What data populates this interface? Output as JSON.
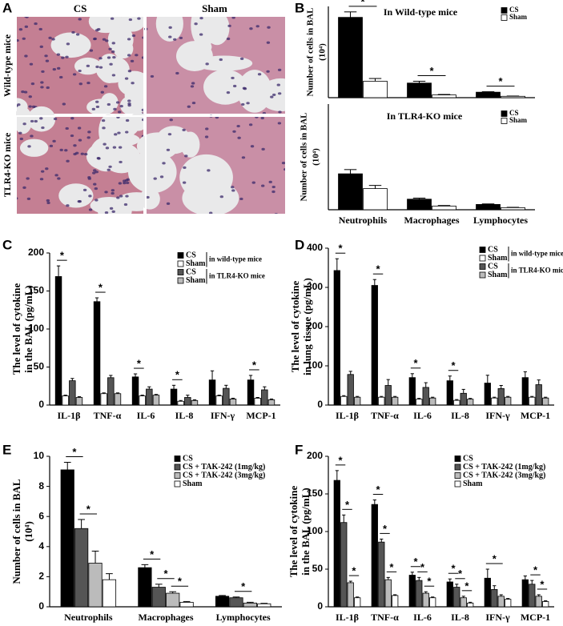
{
  "panel_labels": [
    "A",
    "B",
    "C",
    "D",
    "E",
    "F"
  ],
  "panel_a": {
    "columns": [
      "CS",
      "Sham"
    ],
    "rows": [
      "Wild-type mice",
      "TLR4-KO mice"
    ]
  },
  "chart_data": [
    {
      "type": "bar",
      "title": "In Wild-type mice",
      "ylabel": [
        "Number of cells in BAL",
        "(10⁴)"
      ],
      "ylim": [
        0,
        10
      ],
      "series": [
        {
          "name": "CS",
          "color": "#000000",
          "values": [
            8.8,
            1.6,
            0.6
          ],
          "errors": [
            0.6,
            0.2,
            0.05
          ]
        },
        {
          "name": "Sham",
          "color": "#ffffff",
          "values": [
            1.8,
            0.3,
            0.15
          ],
          "errors": [
            0.3,
            0.05,
            0.03
          ]
        }
      ],
      "annotations": [
        {
          "text": "*",
          "category": 0,
          "pair": [
            0,
            1
          ]
        },
        {
          "text": "*",
          "category": 1,
          "pair": [
            0,
            1
          ]
        },
        {
          "text": "*",
          "category": 2,
          "pair": [
            0,
            1
          ]
        }
      ]
    },
    {
      "type": "bar",
      "title": "In TLR4-KO mice",
      "ylabel": [
        "Number of cells in BAL",
        "(10⁴)"
      ],
      "ylim": [
        0,
        10
      ],
      "categories": [
        "Neutrophils",
        "Macrophages",
        "Lymphocytes"
      ],
      "series": [
        {
          "name": "CS",
          "color": "#000000",
          "values": [
            3.4,
            1.0,
            0.5
          ],
          "errors": [
            0.4,
            0.1,
            0.05
          ]
        },
        {
          "name": "Sham",
          "color": "#ffffff",
          "values": [
            2.0,
            0.35,
            0.2
          ],
          "errors": [
            0.3,
            0.05,
            0.03
          ]
        }
      ]
    },
    {
      "type": "bar",
      "ylabel": [
        "The level of  cytokine",
        "in the BAL (pg/mL)"
      ],
      "ylim": [
        0,
        200
      ],
      "yticks": [
        0,
        50,
        100,
        150,
        200
      ],
      "categories": [
        "IL-1β",
        "TNF-α",
        "IL-6",
        "IL-8",
        "IFN-γ",
        "MCP-1"
      ],
      "series": [
        {
          "name": "CS",
          "color": "#000000",
          "values": [
            169,
            136,
            37,
            21,
            33,
            33
          ],
          "errors": [
            14,
            5,
            4,
            5,
            12,
            6
          ]
        },
        {
          "name": "Sham",
          "color": "#ffffff",
          "values": [
            12,
            15,
            12,
            5,
            12,
            9
          ],
          "errors": [
            1,
            1,
            1,
            1,
            1,
            1
          ]
        },
        {
          "name": "CS",
          "color": "#555555",
          "values": [
            32,
            36,
            21,
            10,
            22,
            20
          ],
          "errors": [
            3,
            3,
            3,
            3,
            4,
            4
          ]
        },
        {
          "name": "Sham",
          "color": "#bbbbbb",
          "values": [
            10,
            15,
            13,
            6,
            8,
            7
          ],
          "errors": [
            1,
            1,
            1,
            1,
            1,
            1
          ]
        }
      ],
      "legend_groups": [
        {
          "label": "in wild-type mice",
          "series": [
            0,
            1
          ]
        },
        {
          "label": "in TLR4-KO mice",
          "series": [
            2,
            3
          ]
        }
      ],
      "annotations": [
        {
          "text": "*",
          "category": 0,
          "pair": [
            0,
            1
          ]
        },
        {
          "text": "*",
          "category": 1,
          "pair": [
            0,
            1
          ]
        },
        {
          "text": "*",
          "category": 2,
          "pair": [
            0,
            1
          ]
        },
        {
          "text": "*",
          "category": 3,
          "pair": [
            0,
            1
          ]
        },
        {
          "text": "*",
          "category": 5,
          "pair": [
            0,
            1
          ]
        }
      ]
    },
    {
      "type": "bar",
      "ylabel": [
        "The level of  cytokine",
        "in lung tissue (pg/mL)"
      ],
      "ylim": [
        0,
        400
      ],
      "yticks": [
        0,
        100,
        200,
        300,
        400
      ],
      "categories": [
        "IL-1β",
        "TNF-α",
        "IL-6",
        "IL-8",
        "IFN-γ",
        "MCP-1"
      ],
      "series": [
        {
          "name": "CS",
          "color": "#000000",
          "values": [
            343,
            305,
            70,
            62,
            56,
            70
          ],
          "errors": [
            30,
            15,
            10,
            12,
            20,
            15
          ]
        },
        {
          "name": "Sham",
          "color": "#ffffff",
          "values": [
            22,
            20,
            15,
            12,
            18,
            20
          ],
          "errors": [
            2,
            2,
            2,
            2,
            2,
            2
          ]
        },
        {
          "name": "CS",
          "color": "#555555",
          "values": [
            78,
            50,
            45,
            30,
            42,
            52
          ],
          "errors": [
            8,
            15,
            12,
            10,
            8,
            12
          ]
        },
        {
          "name": "Sham",
          "color": "#bbbbbb",
          "values": [
            20,
            20,
            18,
            15,
            20,
            18
          ],
          "errors": [
            2,
            2,
            2,
            2,
            2,
            2
          ]
        }
      ],
      "legend_groups": [
        {
          "label": "in wild-type mice",
          "series": [
            0,
            1
          ]
        },
        {
          "label": "in TLR4-KO mice",
          "series": [
            2,
            3
          ]
        }
      ],
      "annotations": [
        {
          "text": "*",
          "category": 0,
          "pair": [
            0,
            1
          ]
        },
        {
          "text": "*",
          "category": 1,
          "pair": [
            0,
            1
          ]
        },
        {
          "text": "*",
          "category": 2,
          "pair": [
            0,
            1
          ]
        },
        {
          "text": "*",
          "category": 3,
          "pair": [
            0,
            1
          ]
        }
      ]
    },
    {
      "type": "bar",
      "ylabel": [
        "Number of cells in BAL",
        "(10⁴)"
      ],
      "ylim": [
        0,
        10
      ],
      "yticks": [
        0,
        2,
        4,
        6,
        8,
        10
      ],
      "categories": [
        "Neutrophils",
        "Macrophages",
        "Lymphocytes"
      ],
      "series": [
        {
          "name": "CS",
          "color": "#000000",
          "values": [
            9.1,
            2.6,
            0.7
          ],
          "errors": [
            0.5,
            0.2,
            0.05
          ]
        },
        {
          "name": "CS + TAK-242 (1mg/kg)",
          "color": "#555555",
          "values": [
            5.2,
            1.3,
            0.6
          ],
          "errors": [
            0.6,
            0.2,
            0.05
          ]
        },
        {
          "name": "CS + TAK-242 (3mg/kg)",
          "color": "#bbbbbb",
          "values": [
            2.9,
            0.9,
            0.25
          ],
          "errors": [
            0.8,
            0.1,
            0.05
          ]
        },
        {
          "name": "Sham",
          "color": "#ffffff",
          "values": [
            1.8,
            0.3,
            0.2
          ],
          "errors": [
            0.4,
            0.05,
            0.03
          ]
        }
      ],
      "annotations": [
        {
          "text": "*",
          "category": 0,
          "pair": [
            0,
            1
          ]
        },
        {
          "text": "*",
          "category": 0,
          "pair": [
            1,
            2
          ]
        },
        {
          "text": "*",
          "category": 1,
          "pair": [
            0,
            1
          ]
        },
        {
          "text": "*",
          "category": 1,
          "pair": [
            1,
            2
          ]
        },
        {
          "text": "*",
          "category": 1,
          "pair": [
            2,
            3
          ]
        },
        {
          "text": "*",
          "category": 2,
          "pair": [
            1,
            2
          ]
        }
      ]
    },
    {
      "type": "bar",
      "ylabel": [
        "The level of  cytokine",
        "in the BAL (pg/mL)"
      ],
      "ylim": [
        0,
        200
      ],
      "yticks": [
        0,
        50,
        100,
        150,
        200
      ],
      "categories": [
        "IL-1β",
        "TNF-α",
        "IL-6",
        "IL-8",
        "IFN-γ",
        "MCP-1"
      ],
      "series": [
        {
          "name": "CS",
          "color": "#000000",
          "values": [
            168,
            136,
            42,
            33,
            38,
            36
          ],
          "errors": [
            13,
            6,
            4,
            4,
            12,
            5
          ]
        },
        {
          "name": "CS + TAK-242 (1mg/kg)",
          "color": "#555555",
          "values": [
            112,
            86,
            35,
            26,
            23,
            30
          ],
          "errors": [
            10,
            4,
            4,
            4,
            5,
            5
          ]
        },
        {
          "name": "CS + TAK-242 (3mg/kg)",
          "color": "#bbbbbb",
          "values": [
            32,
            36,
            18,
            12,
            14,
            14
          ],
          "errors": [
            2,
            3,
            2,
            2,
            2,
            2
          ]
        },
        {
          "name": "Sham",
          "color": "#ffffff",
          "values": [
            12,
            15,
            12,
            5,
            10,
            7
          ],
          "errors": [
            1,
            1,
            1,
            1,
            1,
            1
          ]
        }
      ],
      "annotations": [
        {
          "text": "*",
          "category": 0,
          "pair": [
            0,
            1
          ]
        },
        {
          "text": "*",
          "category": 0,
          "pair": [
            1,
            2
          ]
        },
        {
          "text": "*",
          "category": 0,
          "pair": [
            2,
            3
          ]
        },
        {
          "text": "*",
          "category": 1,
          "pair": [
            0,
            1
          ]
        },
        {
          "text": "*",
          "category": 1,
          "pair": [
            1,
            2
          ]
        },
        {
          "text": "*",
          "category": 1,
          "pair": [
            2,
            3
          ]
        },
        {
          "text": "*",
          "category": 2,
          "pair": [
            0,
            1
          ]
        },
        {
          "text": "*",
          "category": 2,
          "pair": [
            1,
            2
          ]
        },
        {
          "text": "*",
          "category": 2,
          "pair": [
            2,
            3
          ]
        },
        {
          "text": "*",
          "category": 3,
          "pair": [
            0,
            1
          ]
        },
        {
          "text": "*",
          "category": 3,
          "pair": [
            1,
            2
          ]
        },
        {
          "text": "*",
          "category": 3,
          "pair": [
            2,
            3
          ]
        },
        {
          "text": "*",
          "category": 4,
          "pair": [
            0,
            2
          ]
        },
        {
          "text": "*",
          "category": 5,
          "pair": [
            1,
            2
          ]
        },
        {
          "text": "*",
          "category": 5,
          "pair": [
            2,
            3
          ]
        }
      ]
    }
  ]
}
